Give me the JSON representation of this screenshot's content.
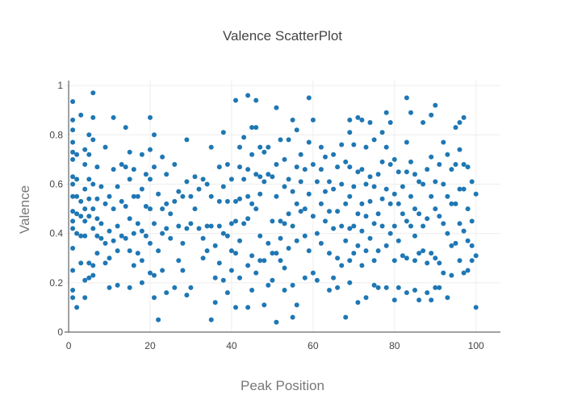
{
  "chart_data": {
    "type": "scatter",
    "title": "Valence ScatterPlot",
    "xlabel": "Peak Position",
    "ylabel": "Valence",
    "xlim": [
      -1,
      106
    ],
    "ylim": [
      0,
      1.02
    ],
    "xticks": [
      0,
      20,
      40,
      60,
      80,
      100
    ],
    "yticks": [
      0,
      0.2,
      0.4,
      0.6,
      0.8,
      1
    ],
    "grid": true,
    "legend": "none",
    "marker_color": "#1f77b4",
    "points": [
      [
        1,
        0.935
      ],
      [
        1,
        0.86
      ],
      [
        1,
        0.82
      ],
      [
        1,
        0.77
      ],
      [
        1,
        0.73
      ],
      [
        1,
        0.7
      ],
      [
        1,
        0.63
      ],
      [
        1,
        0.6
      ],
      [
        1,
        0.55
      ],
      [
        1,
        0.49
      ],
      [
        1,
        0.45
      ],
      [
        1,
        0.42
      ],
      [
        1,
        0.34
      ],
      [
        1,
        0.25
      ],
      [
        1,
        0.17
      ],
      [
        1,
        0.14
      ],
      [
        2,
        0.72
      ],
      [
        2,
        0.62
      ],
      [
        2,
        0.55
      ],
      [
        2,
        0.48
      ],
      [
        2,
        0.4
      ],
      [
        2,
        0.1
      ],
      [
        3,
        0.88
      ],
      [
        3,
        0.53
      ],
      [
        3,
        0.47
      ],
      [
        3,
        0.39
      ],
      [
        3,
        0.28
      ],
      [
        4,
        0.74
      ],
      [
        4,
        0.68
      ],
      [
        4,
        0.58
      ],
      [
        4,
        0.5
      ],
      [
        4,
        0.45
      ],
      [
        4,
        0.39
      ],
      [
        4,
        0.21
      ],
      [
        4,
        0.14
      ],
      [
        5,
        0.8
      ],
      [
        5,
        0.72
      ],
      [
        5,
        0.62
      ],
      [
        5,
        0.54
      ],
      [
        5,
        0.47
      ],
      [
        5,
        0.28
      ],
      [
        5,
        0.22
      ],
      [
        6,
        0.97
      ],
      [
        6,
        0.87
      ],
      [
        6,
        0.78
      ],
      [
        6,
        0.6
      ],
      [
        6,
        0.5
      ],
      [
        6,
        0.42
      ],
      [
        6,
        0.27
      ],
      [
        6,
        0.23
      ],
      [
        7,
        0.67
      ],
      [
        7,
        0.54
      ],
      [
        7,
        0.46
      ],
      [
        7,
        0.39
      ],
      [
        7,
        0.32
      ],
      [
        8,
        0.59
      ],
      [
        8,
        0.44
      ],
      [
        8,
        0.38
      ],
      [
        9,
        0.75
      ],
      [
        9,
        0.52
      ],
      [
        9,
        0.36
      ],
      [
        9,
        0.28
      ],
      [
        10,
        0.55
      ],
      [
        10,
        0.41
      ],
      [
        10,
        0.3
      ],
      [
        10,
        0.18
      ],
      [
        11,
        0.87
      ],
      [
        11,
        0.66
      ],
      [
        11,
        0.5
      ],
      [
        11,
        0.37
      ],
      [
        12,
        0.59
      ],
      [
        12,
        0.43
      ],
      [
        12,
        0.33
      ],
      [
        12,
        0.19
      ],
      [
        13,
        0.68
      ],
      [
        13,
        0.53
      ],
      [
        13,
        0.39
      ],
      [
        14,
        0.83
      ],
      [
        14,
        0.67
      ],
      [
        14,
        0.51
      ],
      [
        14,
        0.38
      ],
      [
        15,
        0.73
      ],
      [
        15,
        0.62
      ],
      [
        15,
        0.46
      ],
      [
        15,
        0.33
      ],
      [
        15,
        0.18
      ],
      [
        16,
        0.66
      ],
      [
        16,
        0.55
      ],
      [
        16,
        0.4
      ],
      [
        16,
        0.27
      ],
      [
        17,
        0.55
      ],
      [
        17,
        0.44
      ],
      [
        17,
        0.32
      ],
      [
        18,
        0.72
      ],
      [
        18,
        0.58
      ],
      [
        18,
        0.41
      ],
      [
        18,
        0.29
      ],
      [
        18,
        0.2
      ],
      [
        19,
        0.64
      ],
      [
        19,
        0.51
      ],
      [
        19,
        0.39
      ],
      [
        20,
        0.87
      ],
      [
        20,
        0.74
      ],
      [
        20,
        0.62
      ],
      [
        20,
        0.5
      ],
      [
        20,
        0.36
      ],
      [
        20,
        0.24
      ],
      [
        21,
        0.8
      ],
      [
        21,
        0.67
      ],
      [
        21,
        0.44
      ],
      [
        21,
        0.23
      ],
      [
        21,
        0.14
      ],
      [
        22,
        0.56
      ],
      [
        22,
        0.33
      ],
      [
        22,
        0.05
      ],
      [
        23,
        0.71
      ],
      [
        23,
        0.5
      ],
      [
        23,
        0.4
      ],
      [
        23,
        0.25
      ],
      [
        24,
        0.64
      ],
      [
        24,
        0.52
      ],
      [
        24,
        0.42
      ],
      [
        24,
        0.16
      ],
      [
        25,
        0.48
      ],
      [
        25,
        0.38
      ],
      [
        26,
        0.68
      ],
      [
        26,
        0.53
      ],
      [
        26,
        0.18
      ],
      [
        27,
        0.57
      ],
      [
        27,
        0.43
      ],
      [
        27,
        0.29
      ],
      [
        28,
        0.55
      ],
      [
        28,
        0.36
      ],
      [
        28,
        0.25
      ],
      [
        29,
        0.78
      ],
      [
        29,
        0.61
      ],
      [
        29,
        0.42
      ],
      [
        29,
        0.15
      ],
      [
        30,
        0.55
      ],
      [
        30,
        0.44
      ],
      [
        30,
        0.18
      ],
      [
        31,
        0.63
      ],
      [
        31,
        0.5
      ],
      [
        32,
        0.58
      ],
      [
        32,
        0.42
      ],
      [
        33,
        0.62
      ],
      [
        33,
        0.38
      ],
      [
        33,
        0.3
      ],
      [
        34,
        0.6
      ],
      [
        34,
        0.43
      ],
      [
        34,
        0.33
      ],
      [
        35,
        0.75
      ],
      [
        35,
        0.55
      ],
      [
        35,
        0.43
      ],
      [
        35,
        0.05
      ],
      [
        36,
        0.12
      ],
      [
        36,
        0.35
      ],
      [
        36,
        0.22
      ],
      [
        37,
        0.67
      ],
      [
        37,
        0.53
      ],
      [
        37,
        0.43
      ],
      [
        37,
        0.28
      ],
      [
        38,
        0.81
      ],
      [
        38,
        0.59
      ],
      [
        38,
        0.4
      ],
      [
        38,
        0.21
      ],
      [
        39,
        0.68
      ],
      [
        39,
        0.53
      ],
      [
        39,
        0.39
      ],
      [
        39,
        0.16
      ],
      [
        40,
        0.62
      ],
      [
        40,
        0.44
      ],
      [
        40,
        0.33
      ],
      [
        40,
        0.25
      ],
      [
        41,
        0.94
      ],
      [
        41,
        0.53
      ],
      [
        41,
        0.45
      ],
      [
        41,
        0.32
      ],
      [
        41,
        0.1
      ],
      [
        42,
        0.75
      ],
      [
        42,
        0.67
      ],
      [
        42,
        0.54
      ],
      [
        42,
        0.37
      ],
      [
        42,
        0.22
      ],
      [
        43,
        0.79
      ],
      [
        43,
        0.62
      ],
      [
        43,
        0.44
      ],
      [
        44,
        0.96
      ],
      [
        44,
        0.66
      ],
      [
        44,
        0.55
      ],
      [
        44,
        0.46
      ],
      [
        44,
        0.27
      ],
      [
        44,
        0.1
      ],
      [
        45,
        0.83
      ],
      [
        45,
        0.72
      ],
      [
        45,
        0.52
      ],
      [
        45,
        0.31
      ],
      [
        45,
        0.17
      ],
      [
        46,
        0.94
      ],
      [
        46,
        0.83
      ],
      [
        46,
        0.64
      ],
      [
        46,
        0.5
      ],
      [
        46,
        0.24
      ],
      [
        47,
        0.75
      ],
      [
        47,
        0.63
      ],
      [
        47,
        0.56
      ],
      [
        47,
        0.39
      ],
      [
        47,
        0.29
      ],
      [
        48,
        0.73
      ],
      [
        48,
        0.61
      ],
      [
        48,
        0.29
      ],
      [
        48,
        0.11
      ],
      [
        49,
        0.75
      ],
      [
        49,
        0.64
      ],
      [
        49,
        0.36
      ],
      [
        49,
        0.19
      ],
      [
        50,
        0.63
      ],
      [
        50,
        0.45
      ],
      [
        50,
        0.32
      ],
      [
        50,
        0.21
      ],
      [
        51,
        0.91
      ],
      [
        51,
        0.68
      ],
      [
        51,
        0.55
      ],
      [
        51,
        0.32
      ],
      [
        51,
        0.04
      ],
      [
        52,
        0.78
      ],
      [
        52,
        0.45
      ],
      [
        52,
        0.38
      ],
      [
        52,
        0.29
      ],
      [
        53,
        0.7
      ],
      [
        53,
        0.59
      ],
      [
        53,
        0.44
      ],
      [
        53,
        0.26
      ],
      [
        53,
        0.17
      ],
      [
        54,
        0.78
      ],
      [
        54,
        0.62
      ],
      [
        54,
        0.48
      ],
      [
        54,
        0.34
      ],
      [
        55,
        0.86
      ],
      [
        55,
        0.57
      ],
      [
        55,
        0.43
      ],
      [
        55,
        0.19
      ],
      [
        55,
        0.06
      ],
      [
        56,
        0.82
      ],
      [
        56,
        0.67
      ],
      [
        56,
        0.52
      ],
      [
        56,
        0.37
      ],
      [
        56,
        0.11
      ],
      [
        57,
        0.72
      ],
      [
        57,
        0.61
      ],
      [
        57,
        0.49
      ],
      [
        58,
        0.66
      ],
      [
        58,
        0.5
      ],
      [
        58,
        0.39
      ],
      [
        58,
        0.22
      ],
      [
        59,
        0.95
      ],
      [
        59,
        0.77
      ],
      [
        59,
        0.56
      ],
      [
        59,
        0.33
      ],
      [
        60,
        0.86
      ],
      [
        60,
        0.68
      ],
      [
        60,
        0.47
      ],
      [
        60,
        0.24
      ],
      [
        61,
        0.61
      ],
      [
        61,
        0.4
      ],
      [
        61,
        0.21
      ],
      [
        62,
        0.75
      ],
      [
        62,
        0.66
      ],
      [
        62,
        0.52
      ],
      [
        62,
        0.36
      ],
      [
        63,
        0.71
      ],
      [
        63,
        0.57
      ],
      [
        63,
        0.45
      ],
      [
        64,
        0.61
      ],
      [
        64,
        0.49
      ],
      [
        64,
        0.32
      ],
      [
        64,
        0.17
      ],
      [
        65,
        0.72
      ],
      [
        65,
        0.58
      ],
      [
        65,
        0.42
      ],
      [
        65,
        0.22
      ],
      [
        66,
        0.67
      ],
      [
        66,
        0.49
      ],
      [
        66,
        0.3
      ],
      [
        66,
        0.18
      ],
      [
        67,
        0.76
      ],
      [
        67,
        0.6
      ],
      [
        67,
        0.43
      ],
      [
        67,
        0.27
      ],
      [
        68,
        0.69
      ],
      [
        68,
        0.52
      ],
      [
        68,
        0.37
      ],
      [
        68,
        0.06
      ],
      [
        69,
        0.86
      ],
      [
        69,
        0.81
      ],
      [
        69,
        0.67
      ],
      [
        69,
        0.55
      ],
      [
        69,
        0.42
      ],
      [
        69,
        0.29
      ],
      [
        69,
        0.2
      ],
      [
        70,
        0.76
      ],
      [
        70,
        0.59
      ],
      [
        70,
        0.43
      ],
      [
        70,
        0.32
      ],
      [
        71,
        0.87
      ],
      [
        71,
        0.65
      ],
      [
        71,
        0.48
      ],
      [
        71,
        0.35
      ],
      [
        71,
        0.12
      ],
      [
        72,
        0.86
      ],
      [
        72,
        0.66
      ],
      [
        72,
        0.52
      ],
      [
        72,
        0.41
      ],
      [
        72,
        0.27
      ],
      [
        73,
        0.75
      ],
      [
        73,
        0.6
      ],
      [
        73,
        0.47
      ],
      [
        73,
        0.33
      ],
      [
        73,
        0.14
      ],
      [
        74,
        0.85
      ],
      [
        74,
        0.63
      ],
      [
        74,
        0.53
      ],
      [
        74,
        0.38
      ],
      [
        75,
        0.78
      ],
      [
        75,
        0.59
      ],
      [
        75,
        0.44
      ],
      [
        75,
        0.29
      ],
      [
        75,
        0.19
      ],
      [
        76,
        0.64
      ],
      [
        76,
        0.48
      ],
      [
        76,
        0.33
      ],
      [
        76,
        0.18
      ],
      [
        77,
        0.81
      ],
      [
        77,
        0.69
      ],
      [
        77,
        0.54
      ],
      [
        77,
        0.43
      ],
      [
        78,
        0.89
      ],
      [
        78,
        0.75
      ],
      [
        78,
        0.58
      ],
      [
        78,
        0.35
      ],
      [
        78,
        0.18
      ],
      [
        79,
        0.85
      ],
      [
        79,
        0.68
      ],
      [
        79,
        0.52
      ],
      [
        79,
        0.4
      ],
      [
        80,
        0.7
      ],
      [
        80,
        0.56
      ],
      [
        80,
        0.43
      ],
      [
        80,
        0.29
      ],
      [
        80,
        0.13
      ],
      [
        81,
        0.65
      ],
      [
        81,
        0.52
      ],
      [
        81,
        0.37
      ],
      [
        81,
        0.18
      ],
      [
        82,
        0.59
      ],
      [
        82,
        0.48
      ],
      [
        82,
        0.31
      ],
      [
        83,
        0.95
      ],
      [
        83,
        0.77
      ],
      [
        83,
        0.65
      ],
      [
        83,
        0.45
      ],
      [
        83,
        0.3
      ],
      [
        83,
        0.16
      ],
      [
        84,
        0.89
      ],
      [
        84,
        0.69
      ],
      [
        84,
        0.55
      ],
      [
        84,
        0.43
      ],
      [
        85,
        0.64
      ],
      [
        85,
        0.5
      ],
      [
        85,
        0.39
      ],
      [
        85,
        0.29
      ],
      [
        85,
        0.17
      ],
      [
        86,
        0.61
      ],
      [
        86,
        0.48
      ],
      [
        86,
        0.32
      ],
      [
        86,
        0.13
      ],
      [
        87,
        0.85
      ],
      [
        87,
        0.6
      ],
      [
        87,
        0.43
      ],
      [
        87,
        0.33
      ],
      [
        88,
        0.66
      ],
      [
        88,
        0.46
      ],
      [
        88,
        0.28
      ],
      [
        88,
        0.16
      ],
      [
        89,
        0.88
      ],
      [
        89,
        0.71
      ],
      [
        89,
        0.55
      ],
      [
        89,
        0.32
      ],
      [
        89,
        0.13
      ],
      [
        90,
        0.92
      ],
      [
        90,
        0.61
      ],
      [
        90,
        0.5
      ],
      [
        90,
        0.3
      ],
      [
        90,
        0.18
      ],
      [
        91,
        0.68
      ],
      [
        91,
        0.47
      ],
      [
        91,
        0.28
      ],
      [
        91,
        0.18
      ],
      [
        92,
        0.77
      ],
      [
        92,
        0.6
      ],
      [
        92,
        0.44
      ],
      [
        92,
        0.24
      ],
      [
        93,
        0.72
      ],
      [
        93,
        0.55
      ],
      [
        93,
        0.4
      ],
      [
        93,
        0.14
      ],
      [
        94,
        0.66
      ],
      [
        94,
        0.52
      ],
      [
        94,
        0.35
      ],
      [
        94,
        0.23
      ],
      [
        95,
        0.83
      ],
      [
        95,
        0.68
      ],
      [
        95,
        0.52
      ],
      [
        95,
        0.36
      ],
      [
        96,
        0.85
      ],
      [
        96,
        0.74
      ],
      [
        96,
        0.58
      ],
      [
        96,
        0.44
      ],
      [
        96,
        0.29
      ],
      [
        97,
        0.87
      ],
      [
        97,
        0.68
      ],
      [
        97,
        0.58
      ],
      [
        97,
        0.41
      ],
      [
        97,
        0.24
      ],
      [
        98,
        0.67
      ],
      [
        98,
        0.5
      ],
      [
        98,
        0.37
      ],
      [
        98,
        0.25
      ],
      [
        99,
        0.61
      ],
      [
        99,
        0.45
      ],
      [
        99,
        0.35
      ],
      [
        99,
        0.29
      ],
      [
        100,
        0.56
      ],
      [
        100,
        0.31
      ],
      [
        100,
        0.1
      ]
    ]
  }
}
